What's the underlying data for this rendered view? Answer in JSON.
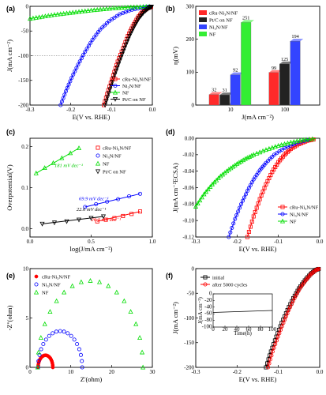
{
  "chart_data": [
    {
      "panel": "(a)",
      "type": "line",
      "xlabel": "E(V vs. RHE)",
      "ylabel": "J(mA cm⁻²)",
      "xlim": [
        -0.3,
        0.0
      ],
      "ylim": [
        -200,
        0
      ],
      "xticks": [
        "-0.3",
        "-0.2",
        "-0.1",
        "0.0"
      ],
      "yticks": [
        "0",
        "-50",
        "-100",
        "-150",
        "-200"
      ],
      "reference_line_y": -100,
      "legend": "bottom-right",
      "series": [
        {
          "name": "cRu-Ni₃N/NF",
          "color": "#ff0000",
          "marker": "square",
          "x": [
            -0.119,
            -0.108,
            -0.096,
            -0.085,
            -0.072,
            -0.06,
            -0.048,
            -0.036,
            -0.024,
            -0.012,
            0.0
          ],
          "y": [
            -200,
            -170,
            -140,
            -112,
            -85,
            -60,
            -40,
            -23,
            -11,
            -4,
            0
          ]
        },
        {
          "name": "Ni₃N/NF",
          "color": "#0000ff",
          "marker": "circle",
          "x": [
            -0.225,
            -0.212,
            -0.198,
            -0.182,
            -0.165,
            -0.147,
            -0.128,
            -0.106,
            -0.08,
            -0.05,
            -0.02,
            0.0
          ],
          "y": [
            -200,
            -172,
            -145,
            -118,
            -92,
            -68,
            -47,
            -30,
            -16,
            -7,
            -2,
            0
          ]
        },
        {
          "name": "NF",
          "color": "#00dd00",
          "marker": "triangle",
          "x": [
            -0.3,
            -0.27,
            -0.24,
            -0.21,
            -0.18,
            -0.15,
            -0.12,
            -0.09,
            -0.06,
            -0.03,
            0.0
          ],
          "y": [
            -25,
            -21,
            -17,
            -14,
            -11,
            -8,
            -5.5,
            -3.5,
            -2,
            -1,
            0
          ]
        },
        {
          "name": "Pt/C on NF",
          "color": "#000000",
          "marker": "triangle-down",
          "x": [
            -0.116,
            -0.104,
            -0.092,
            -0.08,
            -0.068,
            -0.056,
            -0.044,
            -0.032,
            -0.02,
            -0.008,
            0.0
          ],
          "y": [
            -200,
            -168,
            -138,
            -110,
            -84,
            -60,
            -40,
            -23,
            -11,
            -3,
            0
          ]
        }
      ]
    },
    {
      "panel": "(b)",
      "type": "bar",
      "xlabel": "J(mA cm⁻²)",
      "ylabel": "η(mV)",
      "ylim": [
        0,
        300
      ],
      "yticks": [
        "0",
        "100",
        "200",
        "300"
      ],
      "categories": [
        "10",
        "100"
      ],
      "legend": "top-left",
      "series": [
        {
          "name": "cRu-Ni₃N/NF",
          "color": "#ff2a2a",
          "values": [
            32,
            99
          ]
        },
        {
          "name": "Pt/C on NF",
          "color": "#222222",
          "values": [
            31,
            125
          ]
        },
        {
          "name": "Ni₃N/NF",
          "color": "#3344ff",
          "values": [
            92,
            194
          ]
        },
        {
          "name": "NF",
          "color": "#33ee33",
          "values": [
            251,
            null
          ]
        }
      ],
      "value_labels": [
        [
          "32",
          "31",
          "92",
          "251"
        ],
        [
          "99",
          "125",
          "194"
        ]
      ]
    },
    {
      "panel": "(c)",
      "type": "scatter",
      "xlabel": "log(J/mA cm⁻²)",
      "ylabel": "Overpotential(V)",
      "xlim": [
        0,
        1.0
      ],
      "ylim": [
        -0.02,
        0.22
      ],
      "xticks": [
        "0.0",
        "0.5",
        "1.0"
      ],
      "yticks": [
        "0.0",
        "0.1",
        "0.2"
      ],
      "legend": "right",
      "series": [
        {
          "name": "cRu-Ni₃N/NF",
          "color": "#ff0000",
          "marker": "square",
          "x": [
            0.55,
            0.62,
            0.69,
            0.76,
            0.83,
            0.9
          ],
          "y": [
            0.018,
            0.022,
            0.026,
            0.031,
            0.036,
            0.042
          ]
        },
        {
          "name": "Ni₃N/NF",
          "color": "#0000ff",
          "marker": "circle",
          "x": [
            0.45,
            0.54,
            0.63,
            0.72,
            0.81,
            0.9
          ],
          "y": [
            0.053,
            0.06,
            0.066,
            0.072,
            0.079,
            0.085
          ]
        },
        {
          "name": "NF",
          "color": "#00dd00",
          "marker": "triangle",
          "x": [
            0.05,
            0.12,
            0.19,
            0.26,
            0.33,
            0.4
          ],
          "y": [
            0.135,
            0.148,
            0.16,
            0.172,
            0.184,
            0.196
          ]
        },
        {
          "name": "Pt/C on NF",
          "color": "#000000",
          "marker": "triangle-down",
          "x": [
            0.1,
            0.2,
            0.3,
            0.4,
            0.5,
            0.6
          ],
          "y": [
            0.012,
            0.015,
            0.018,
            0.022,
            0.026,
            0.03
          ]
        }
      ],
      "annotations": [
        {
          "text": "181 mV dec⁻¹",
          "color": "#00cc00",
          "x": 0.2,
          "y": 0.15
        },
        {
          "text": "69.9 mV dec⁻¹",
          "color": "#0000ff",
          "x": 0.4,
          "y": 0.069
        },
        {
          "text": "22.6 mV dec⁻¹",
          "color": "#000000",
          "x": 0.38,
          "y": 0.043
        },
        {
          "text": "26.2 mV dec⁻¹",
          "color": "#ff0000",
          "x": 0.5,
          "y": 0.018
        }
      ]
    },
    {
      "panel": "(d)",
      "type": "line",
      "xlabel": "E(V vs. RHE)",
      "ylabel": "J(mA cm⁻²ECSA)",
      "xlim": [
        -0.3,
        0.0
      ],
      "ylim": [
        -0.12,
        0.0
      ],
      "xticks": [
        "-0.3",
        "-0.2",
        "-0.1",
        "0.0"
      ],
      "yticks": [
        "0.00",
        "-0.02",
        "-0.04",
        "-0.06",
        "-0.08",
        "-0.10",
        "-0.12"
      ],
      "legend": "bottom-right",
      "series": [
        {
          "name": "cRu-Ni₃N/NF",
          "color": "#ff0000",
          "marker": "square",
          "x": [
            -0.175,
            -0.16,
            -0.145,
            -0.13,
            -0.115,
            -0.1,
            -0.085,
            -0.07,
            -0.05,
            -0.03,
            -0.01
          ],
          "y": [
            -0.12,
            -0.095,
            -0.074,
            -0.056,
            -0.041,
            -0.029,
            -0.02,
            -0.013,
            -0.007,
            -0.003,
            -0.001
          ]
        },
        {
          "name": "Ni₃N/NF",
          "color": "#0000ff",
          "marker": "circle",
          "x": [
            -0.22,
            -0.205,
            -0.19,
            -0.175,
            -0.16,
            -0.145,
            -0.13,
            -0.11,
            -0.085,
            -0.055,
            -0.02
          ],
          "y": [
            -0.12,
            -0.098,
            -0.08,
            -0.064,
            -0.05,
            -0.039,
            -0.03,
            -0.02,
            -0.012,
            -0.006,
            -0.001
          ]
        },
        {
          "name": "NF",
          "color": "#00dd00",
          "marker": "triangle",
          "x": [
            -0.3,
            -0.28,
            -0.26,
            -0.24,
            -0.22,
            -0.2,
            -0.18,
            -0.16,
            -0.13,
            -0.1,
            -0.07,
            -0.04,
            -0.01
          ],
          "y": [
            -0.083,
            -0.068,
            -0.056,
            -0.046,
            -0.038,
            -0.031,
            -0.025,
            -0.02,
            -0.014,
            -0.009,
            -0.005,
            -0.002,
            -0.0005
          ]
        }
      ]
    },
    {
      "panel": "(e)",
      "type": "scatter",
      "xlabel": "Z'(ohm)",
      "ylabel": "-Z''(ohm)",
      "xlim": [
        0,
        30
      ],
      "ylim": [
        0,
        10
      ],
      "xticks": [
        "0",
        "10",
        "20",
        "30"
      ],
      "yticks": [
        "0",
        "5",
        "10"
      ],
      "legend": "top-left",
      "series": [
        {
          "name": "cRu-Ni₃N/NF",
          "color": "#ff0000",
          "marker": "circle-filled",
          "center": 3.8,
          "radius": 1.8
        },
        {
          "name": "Ni₃N/NF",
          "color": "#0000ff",
          "marker": "circle",
          "center": 7.4,
          "radius": 5.4
        },
        {
          "name": "NF",
          "color": "#00dd00",
          "marker": "triangle",
          "center": 14.8,
          "radius": 12.9
        }
      ]
    },
    {
      "panel": "(f)",
      "type": "line",
      "xlabel": "E(V vs. RHE)",
      "ylabel": "J(mA cm⁻²)",
      "xlim": [
        -0.3,
        0.0
      ],
      "ylim": [
        -200,
        0
      ],
      "xticks": [
        "-0.3",
        "-0.2",
        "-0.1",
        "0.0"
      ],
      "yticks": [
        "0",
        "-50",
        "-100",
        "-150",
        "-200"
      ],
      "legend": "top-left",
      "series": [
        {
          "name": "initial",
          "color": "#000000",
          "marker": "square",
          "x": [
            -0.13,
            -0.118,
            -0.105,
            -0.092,
            -0.078,
            -0.064,
            -0.05,
            -0.036,
            -0.022,
            -0.01,
            0.0
          ],
          "y": [
            -200,
            -168,
            -138,
            -110,
            -84,
            -60,
            -40,
            -24,
            -11,
            -3,
            0
          ]
        },
        {
          "name": "after 5000 cycles",
          "color": "#ff0000",
          "marker": "circle",
          "x": [
            -0.125,
            -0.114,
            -0.101,
            -0.088,
            -0.075,
            -0.061,
            -0.048,
            -0.034,
            -0.021,
            -0.009,
            0.0
          ],
          "y": [
            -200,
            -168,
            -138,
            -110,
            -84,
            -60,
            -40,
            -24,
            -11,
            -3,
            0
          ]
        }
      ],
      "inset": {
        "xlabel": "Time(h)",
        "ylabel": "J(mA cm⁻²)",
        "xlim": [
          0,
          100
        ],
        "ylim": [
          -100,
          0
        ],
        "xticks": [
          "0",
          "20",
          "40",
          "60",
          "80",
          "100"
        ],
        "yticks": [
          "0",
          "-20",
          "-40",
          "-60",
          "-80",
          "-100"
        ],
        "x": [
          0,
          100
        ],
        "y": [
          -56,
          -50
        ]
      }
    }
  ]
}
